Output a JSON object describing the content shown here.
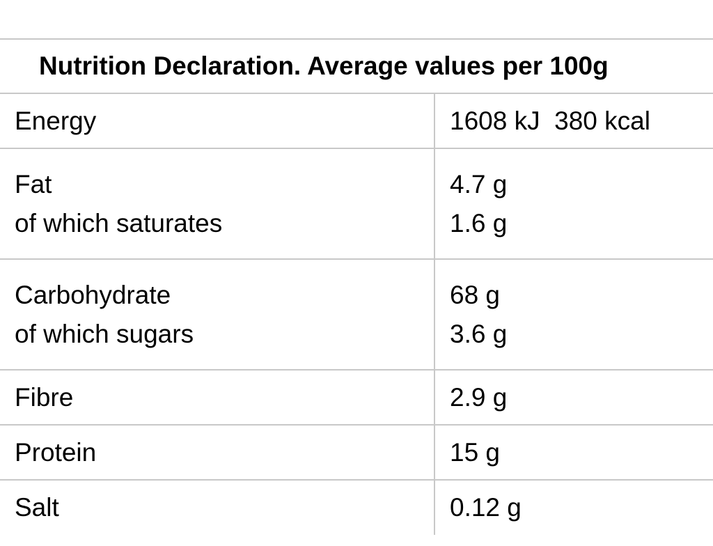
{
  "title": "Nutrition Declaration. Average values per 100g",
  "rows": [
    {
      "labels": [
        "Energy"
      ],
      "values": [
        "1608 kJ  380 kcal"
      ]
    },
    {
      "labels": [
        "Fat",
        "of which saturates"
      ],
      "values": [
        "4.7 g",
        "1.6 g"
      ]
    },
    {
      "labels": [
        "Carbohydrate",
        "of which sugars"
      ],
      "values": [
        "68 g",
        "3.6 g"
      ]
    },
    {
      "labels": [
        "Fibre"
      ],
      "values": [
        "2.9 g"
      ]
    },
    {
      "labels": [
        "Protein"
      ],
      "values": [
        "15 g"
      ]
    },
    {
      "labels": [
        "Salt"
      ],
      "values": [
        "0.12 g"
      ]
    }
  ],
  "colors": {
    "border": "#c8c8c8",
    "text": "#000000",
    "background": "#ffffff"
  }
}
